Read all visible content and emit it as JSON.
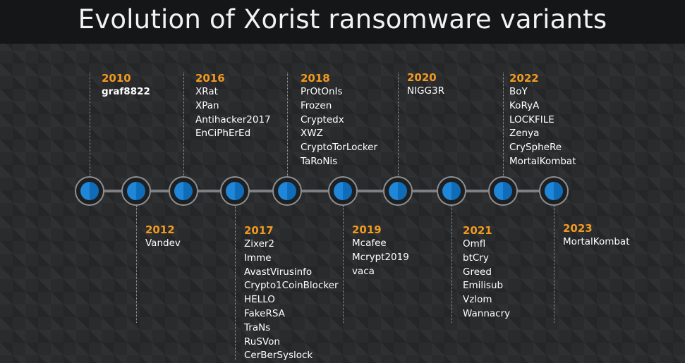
{
  "title": "Evolution of Xorist ransomware variants",
  "colors": {
    "year": "#f29a1f",
    "node": "#1f86d8",
    "axis": "#7d7f82"
  },
  "groups": [
    {
      "year": "2010",
      "items": [
        "graf8822"
      ]
    },
    {
      "year": "2012",
      "items": [
        "Vandev"
      ]
    },
    {
      "year": "2016",
      "items": [
        "XRat",
        "XPan",
        "Antihacker2017",
        "EnCiPhErEd"
      ]
    },
    {
      "year": "2017",
      "items": [
        "Zixer2",
        "Imme",
        "AvastVirusinfo",
        "Crypto1CoinBlocker",
        "HELLO",
        "FakeRSA",
        "TraNs",
        "RuSVon",
        "CerBerSyslock"
      ]
    },
    {
      "year": "2018",
      "items": [
        "PrOtOnIs",
        "Frozen",
        "Cryptedx",
        "XWZ",
        "CryptoTorLocker",
        "TaRoNis"
      ]
    },
    {
      "year": "2019",
      "items": [
        "Mcafee",
        "Mcrypt2019",
        "vaca"
      ]
    },
    {
      "year": "2020",
      "items": [
        "NIGG3R"
      ]
    },
    {
      "year": "2021",
      "items": [
        "Omfl",
        "btCry",
        "Greed",
        "Emilisub",
        "Vzlom",
        "Wannacry"
      ]
    },
    {
      "year": "2022",
      "items": [
        "BoY",
        "KoRyA",
        "LOCKFILE",
        "Zenya",
        "CrySpheRe",
        "MortalKombat"
      ]
    },
    {
      "year": "2023",
      "items": [
        "MortalKombat"
      ]
    }
  ]
}
